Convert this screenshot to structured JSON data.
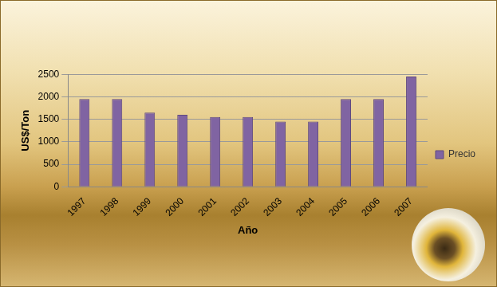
{
  "chart_data": {
    "type": "bar",
    "x_label": "Año",
    "y_label": "US$/Ton",
    "categories": [
      "1997",
      "1998",
      "1999",
      "2000",
      "2001",
      "2002",
      "2003",
      "2004",
      "2005",
      "2006",
      "2007"
    ],
    "series": [
      {
        "name": "Precio",
        "color": "#8064a2",
        "values": [
          1950,
          1950,
          1650,
          1600,
          1550,
          1550,
          1450,
          1450,
          1950,
          1950,
          2450
        ]
      }
    ],
    "ylim": [
      0,
      2500
    ],
    "yticks": [
      0,
      500,
      1000,
      1500,
      2000,
      2500
    ],
    "grid": true,
    "legend": "right"
  }
}
